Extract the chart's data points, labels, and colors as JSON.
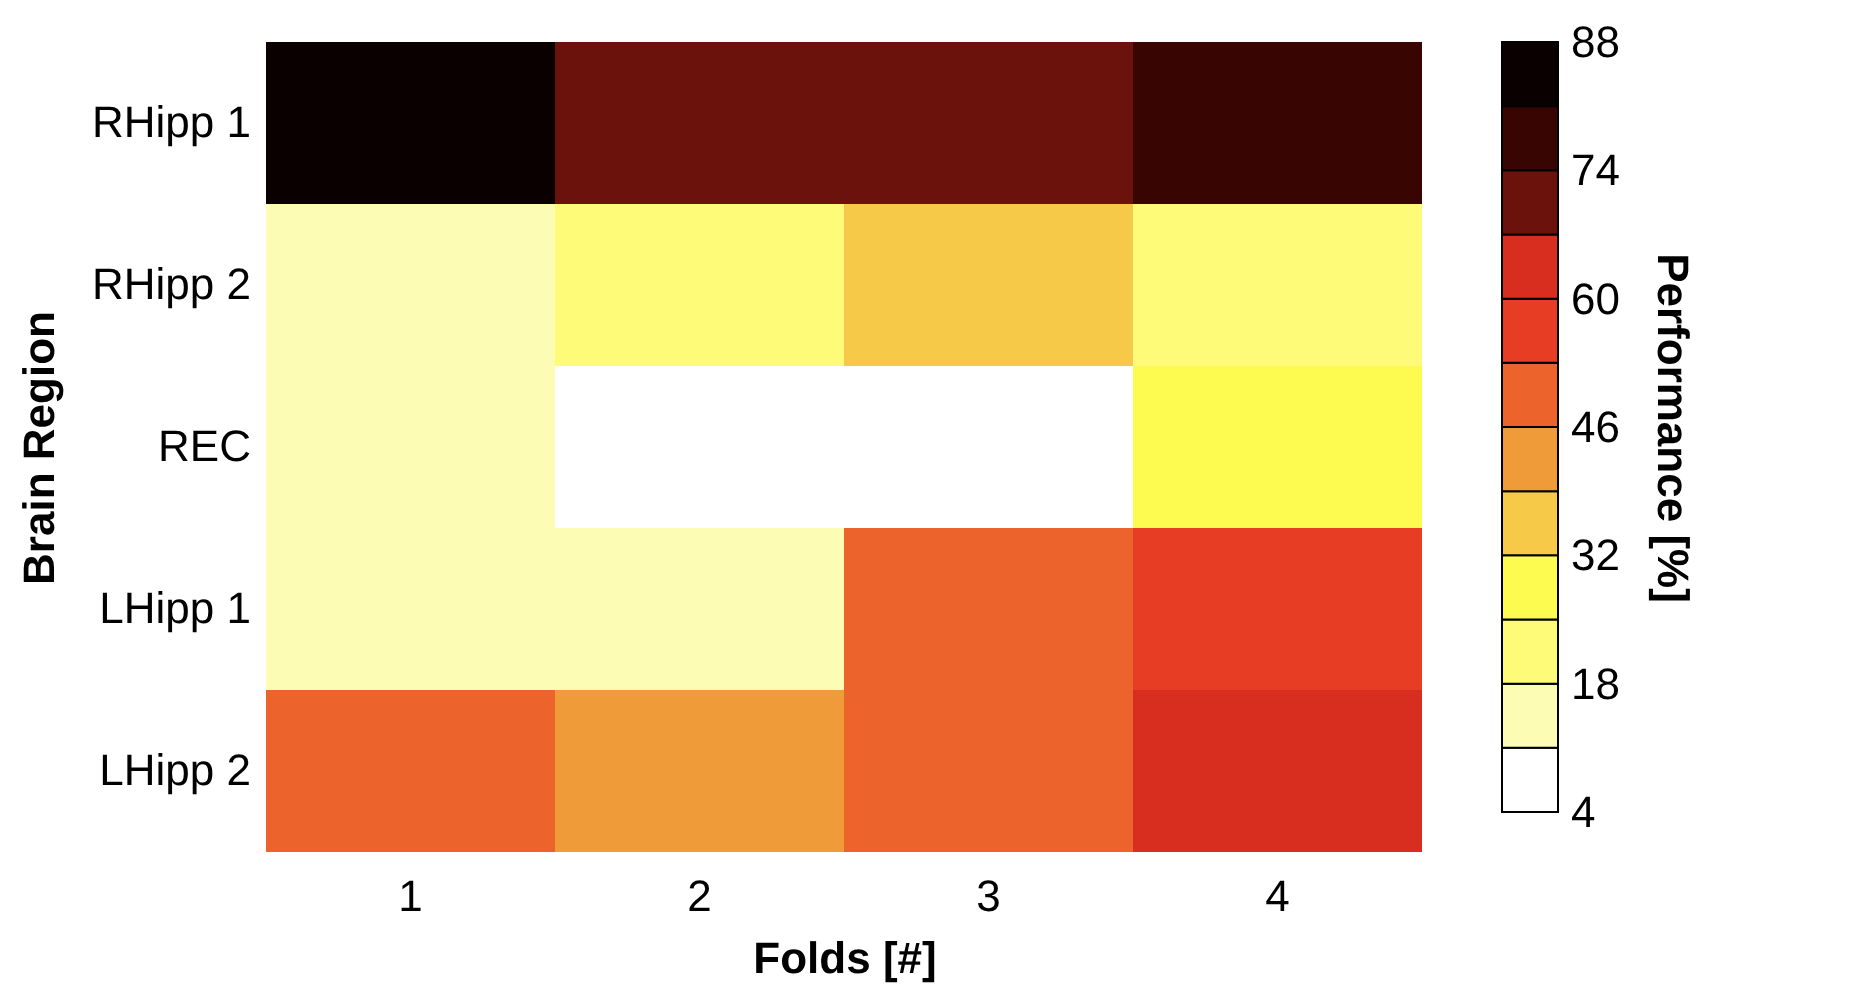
{
  "chart_data": {
    "type": "heatmap",
    "xlabel": "Folds [#]",
    "ylabel": "Brain Region",
    "clabel": "Performance [%]",
    "categories": [
      "1",
      "2",
      "3",
      "4"
    ],
    "y_categories": [
      "RHipp 1",
      "RHipp 2",
      "REC",
      "LHipp 1",
      "LHipp 2"
    ],
    "cells": [
      [
        85,
        71,
        71,
        78
      ],
      [
        15,
        22,
        36,
        22
      ],
      [
        15,
        8,
        8,
        29
      ],
      [
        15,
        15,
        50,
        57
      ],
      [
        50,
        43,
        50,
        64
      ]
    ],
    "clim": [
      4,
      88
    ],
    "cticks": [
      4,
      18,
      32,
      46,
      60,
      74,
      88
    ],
    "colors": [
      "#ffffff",
      "#fdfcb4",
      "#fefb78",
      "#fefb50",
      "#f6ca48",
      "#ef9b39",
      "#ec632c",
      "#e83d25",
      "#d72e1f",
      "#6b120d",
      "#380503",
      "#0b0000"
    ]
  }
}
